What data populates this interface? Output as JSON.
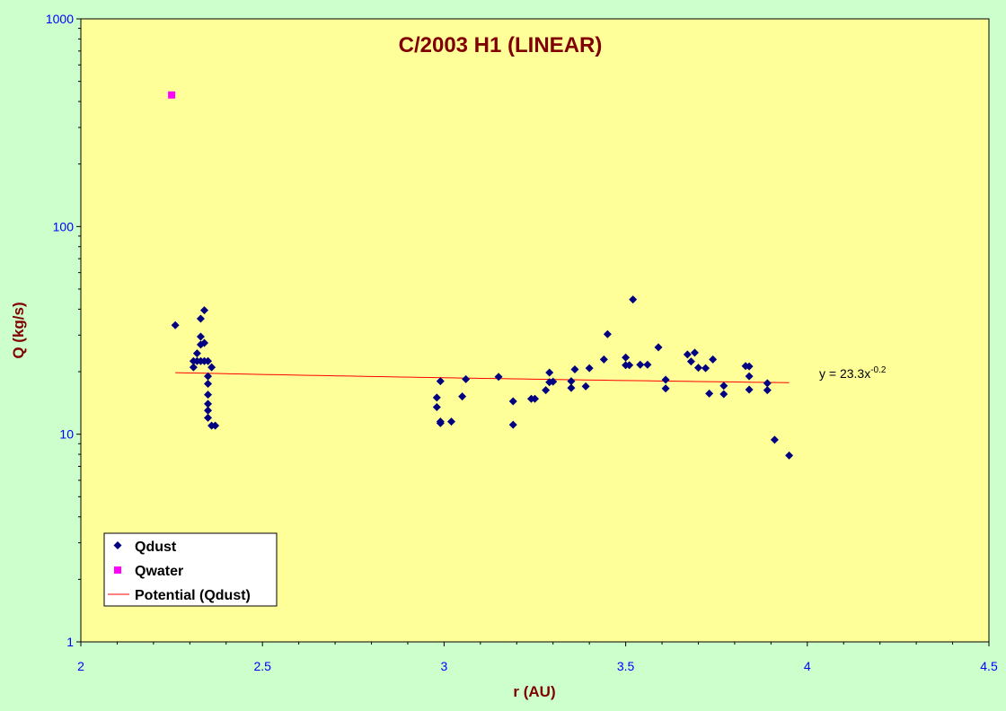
{
  "chart_data": {
    "type": "scatter",
    "title": "C/2003 H1 (LINEAR)",
    "xlabel": "r (AU)",
    "ylabel": "Q (kg/s)",
    "xlim": [
      2,
      4.5
    ],
    "ylim": [
      1,
      1000
    ],
    "y_scale": "log",
    "x_ticks": [
      "2",
      "2.5",
      "3",
      "3.5",
      "4",
      "4.5"
    ],
    "y_ticks": [
      "1",
      "10",
      "100",
      "1000"
    ],
    "legend_position": "bottom-left",
    "colors": {
      "plot_background": "#ffff99",
      "page_background": "#ccffcc",
      "title": "#800000",
      "axis_labels": "#800000",
      "tick_labels": "#0000ff",
      "qdust": "#000080",
      "qwater": "#ff00ff",
      "trend": "#ff0000"
    },
    "series": [
      {
        "name": "Qdust",
        "marker": "diamond",
        "x": [
          2.26,
          2.31,
          2.31,
          2.32,
          2.32,
          2.33,
          2.33,
          2.33,
          2.33,
          2.34,
          2.34,
          2.34,
          2.35,
          2.35,
          2.35,
          2.35,
          2.35,
          2.35,
          2.35,
          2.36,
          2.36,
          2.37,
          2.98,
          2.98,
          2.99,
          2.99,
          2.99,
          3.02,
          3.05,
          3.06,
          3.15,
          3.19,
          3.19,
          3.24,
          3.25,
          3.28,
          3.29,
          3.29,
          3.3,
          3.35,
          3.35,
          3.36,
          3.39,
          3.4,
          3.44,
          3.45,
          3.5,
          3.5,
          3.51,
          3.52,
          3.54,
          3.56,
          3.59,
          3.61,
          3.61,
          3.67,
          3.68,
          3.69,
          3.7,
          3.72,
          3.73,
          3.74,
          3.77,
          3.77,
          3.83,
          3.84,
          3.84,
          3.84,
          3.89,
          3.89,
          3.91,
          3.95
        ],
        "y": [
          33.5,
          22.5,
          21,
          24.5,
          22.5,
          36,
          29.5,
          27,
          22.5,
          39.5,
          27.5,
          22.5,
          19,
          17.5,
          15.5,
          14,
          13,
          12,
          22.5,
          21,
          11,
          11,
          15,
          13.5,
          11.3,
          18,
          11.5,
          11.5,
          15.2,
          18.4,
          18.9,
          14.4,
          11.1,
          14.8,
          14.8,
          16.3,
          17.8,
          19.8,
          17.9,
          16.7,
          18,
          20.5,
          17,
          20.8,
          22.9,
          30.3,
          23.4,
          21.5,
          21.5,
          44.5,
          21.6,
          21.6,
          26.2,
          18.3,
          16.6,
          24.2,
          22.4,
          24.7,
          20.9,
          20.8,
          15.7,
          22.9,
          17.1,
          15.6,
          21.3,
          21.2,
          16.4,
          19,
          17.6,
          16.3,
          9.4,
          7.9
        ]
      },
      {
        "name": "Qwater",
        "marker": "square",
        "x": [
          2.25
        ],
        "y": [
          430
        ]
      },
      {
        "name": "Potential (Qdust)",
        "type": "power-trendline",
        "coefficient": 23.3,
        "exponent": -0.2,
        "x_range": [
          2.26,
          3.95
        ],
        "equation_base": "y = 23.3x",
        "equation_exponent": "-0.2"
      }
    ]
  }
}
